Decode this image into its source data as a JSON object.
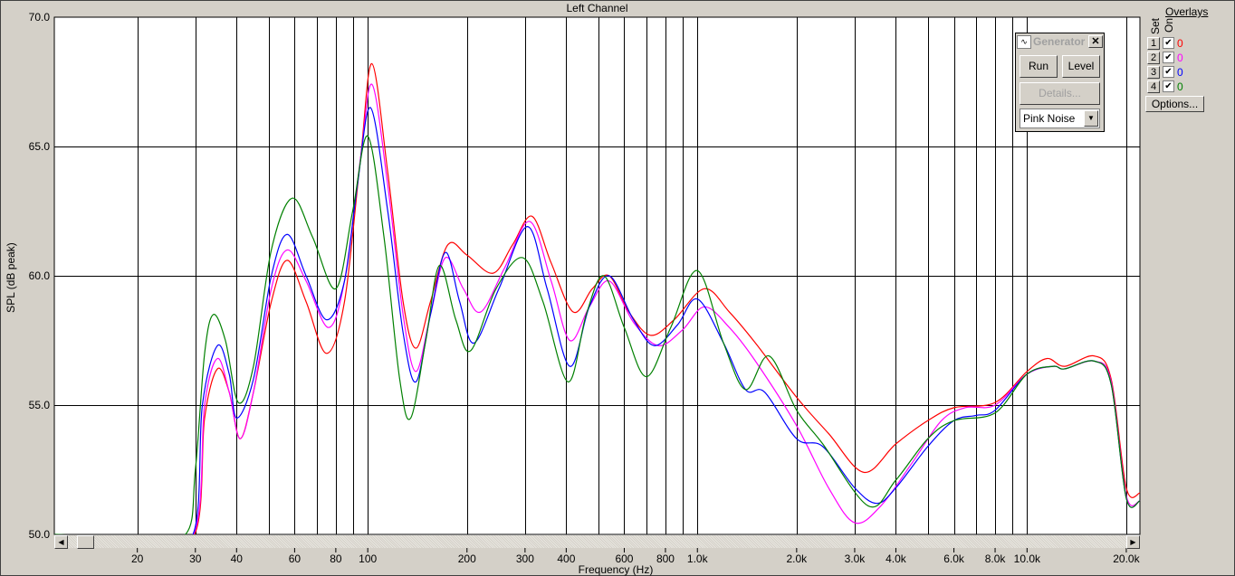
{
  "window": {
    "title": "Left Channel"
  },
  "generator": {
    "title": "Generator",
    "run": "Run",
    "level": "Level",
    "details": "Details...",
    "signal": "Pink Noise"
  },
  "overlays": {
    "title": "Overlays",
    "set_label": "Set",
    "on_label": "On",
    "options": "Options...",
    "items": [
      {
        "set": "1",
        "on": true,
        "value": "0",
        "color": "#ff0000"
      },
      {
        "set": "2",
        "on": true,
        "value": "0",
        "color": "#ff00ff"
      },
      {
        "set": "3",
        "on": true,
        "value": "0",
        "color": "#0000ff"
      },
      {
        "set": "4",
        "on": true,
        "value": "0",
        "color": "#008000"
      }
    ]
  },
  "chart_data": {
    "type": "line",
    "title": "Left Channel",
    "xlabel": "Frequency (Hz)",
    "ylabel": "SPL (dB peak)",
    "xscale": "log",
    "xlim": [
      11.2,
      22000
    ],
    "ylim": [
      50,
      70
    ],
    "grid": true,
    "yticks": [
      "70.0",
      "65.0",
      "60.0",
      "55.0",
      "50.0"
    ],
    "xticks": [
      {
        "v": 20,
        "l": "20"
      },
      {
        "v": 30,
        "l": "30"
      },
      {
        "v": 40,
        "l": "40"
      },
      {
        "v": 60,
        "l": "60"
      },
      {
        "v": 80,
        "l": "80"
      },
      {
        "v": 100,
        "l": "100"
      },
      {
        "v": 200,
        "l": "200"
      },
      {
        "v": 300,
        "l": "300"
      },
      {
        "v": 400,
        "l": "400"
      },
      {
        "v": 600,
        "l": "600"
      },
      {
        "v": 800,
        "l": "800"
      },
      {
        "v": 1000,
        "l": "1.0k"
      },
      {
        "v": 2000,
        "l": "2.0k"
      },
      {
        "v": 3000,
        "l": "3.0k"
      },
      {
        "v": 4000,
        "l": "4.0k"
      },
      {
        "v": 6000,
        "l": "6.0k"
      },
      {
        "v": 8000,
        "l": "8.0k"
      },
      {
        "v": 10000,
        "l": "10.0k"
      },
      {
        "v": 20000,
        "l": "20.0k"
      }
    ],
    "series": [
      {
        "color": "#ff0000",
        "points": [
          [
            11.2,
            50
          ],
          [
            29.8,
            50
          ],
          [
            32,
            54.5
          ],
          [
            35,
            56.4
          ],
          [
            38,
            55.5
          ],
          [
            41,
            53.7
          ],
          [
            45,
            55.5
          ],
          [
            51,
            59
          ],
          [
            57,
            60.6
          ],
          [
            65,
            59
          ],
          [
            75,
            57
          ],
          [
            85,
            59
          ],
          [
            95,
            64.5
          ],
          [
            103,
            68.2
          ],
          [
            115,
            64
          ],
          [
            128,
            59
          ],
          [
            140,
            57.2
          ],
          [
            155,
            59
          ],
          [
            175,
            61.2
          ],
          [
            200,
            60.8
          ],
          [
            240,
            60.1
          ],
          [
            275,
            61.2
          ],
          [
            315,
            62.3
          ],
          [
            360,
            60.5
          ],
          [
            420,
            58.6
          ],
          [
            480,
            59.5
          ],
          [
            540,
            60
          ],
          [
            620,
            58.6
          ],
          [
            720,
            57.7
          ],
          [
            850,
            58.3
          ],
          [
            1050,
            59.5
          ],
          [
            1250,
            58.6
          ],
          [
            1500,
            57.4
          ],
          [
            2000,
            55.3
          ],
          [
            2500,
            53.9
          ],
          [
            3200,
            52.4
          ],
          [
            4000,
            53.5
          ],
          [
            5000,
            54.4
          ],
          [
            6000,
            54.9
          ],
          [
            8000,
            55.1
          ],
          [
            10000,
            56.3
          ],
          [
            11500,
            56.8
          ],
          [
            13000,
            56.5
          ],
          [
            16000,
            56.9
          ],
          [
            18000,
            56
          ],
          [
            20000,
            51.8
          ],
          [
            22000,
            51.6
          ]
        ]
      },
      {
        "color": "#ff00ff",
        "points": [
          [
            11.2,
            50
          ],
          [
            29.6,
            50
          ],
          [
            32,
            55
          ],
          [
            35,
            56.8
          ],
          [
            38,
            55.5
          ],
          [
            41,
            53.7
          ],
          [
            45,
            55.5
          ],
          [
            51,
            59.5
          ],
          [
            57,
            61
          ],
          [
            65,
            59.8
          ],
          [
            76,
            58
          ],
          [
            85,
            59.8
          ],
          [
            95,
            64.5
          ],
          [
            103,
            67.4
          ],
          [
            115,
            63.5
          ],
          [
            128,
            58.5
          ],
          [
            140,
            56.3
          ],
          [
            155,
            58.5
          ],
          [
            172,
            60.7
          ],
          [
            195,
            59.5
          ],
          [
            220,
            58.6
          ],
          [
            260,
            60.3
          ],
          [
            310,
            62.1
          ],
          [
            360,
            59.8
          ],
          [
            410,
            57.5
          ],
          [
            470,
            58.8
          ],
          [
            540,
            59.8
          ],
          [
            640,
            58.2
          ],
          [
            760,
            57.3
          ],
          [
            900,
            57.9
          ],
          [
            1050,
            58.8
          ],
          [
            1250,
            58
          ],
          [
            1500,
            56.7
          ],
          [
            2000,
            54.2
          ],
          [
            2500,
            51.8
          ],
          [
            3000,
            50.45
          ],
          [
            3600,
            51.1
          ],
          [
            4500,
            52.8
          ],
          [
            5500,
            54.4
          ],
          [
            6500,
            54.9
          ],
          [
            8000,
            55
          ],
          [
            10000,
            56.2
          ],
          [
            12000,
            56.5
          ],
          [
            13000,
            56.4
          ],
          [
            16000,
            56.7
          ],
          [
            18000,
            55.9
          ],
          [
            20000,
            51.5
          ],
          [
            22000,
            51.3
          ]
        ]
      },
      {
        "color": "#0000ff",
        "points": [
          [
            11.2,
            50
          ],
          [
            29.5,
            50
          ],
          [
            31.5,
            55
          ],
          [
            35,
            57.3
          ],
          [
            38,
            56.2
          ],
          [
            40,
            54.5
          ],
          [
            45,
            56
          ],
          [
            51,
            60
          ],
          [
            57,
            61.6
          ],
          [
            65,
            60
          ],
          [
            75,
            58.3
          ],
          [
            85,
            59.8
          ],
          [
            93,
            63.5
          ],
          [
            102,
            66.5
          ],
          [
            115,
            62.5
          ],
          [
            128,
            57.8
          ],
          [
            140,
            55.9
          ],
          [
            155,
            58.5
          ],
          [
            172,
            60.9
          ],
          [
            190,
            59
          ],
          [
            210,
            57.4
          ],
          [
            250,
            59.5
          ],
          [
            305,
            61.9
          ],
          [
            350,
            59.5
          ],
          [
            410,
            56.5
          ],
          [
            470,
            58.8
          ],
          [
            540,
            60
          ],
          [
            640,
            58.3
          ],
          [
            740,
            57.3
          ],
          [
            870,
            58.1
          ],
          [
            1000,
            59.1
          ],
          [
            1200,
            57.4
          ],
          [
            1400,
            55.6
          ],
          [
            1600,
            55.5
          ],
          [
            2000,
            53.7
          ],
          [
            2400,
            53.4
          ],
          [
            3000,
            51.8
          ],
          [
            3500,
            51.2
          ],
          [
            4000,
            51.8
          ],
          [
            5000,
            53.4
          ],
          [
            6000,
            54.4
          ],
          [
            7000,
            54.6
          ],
          [
            8000,
            54.8
          ],
          [
            10000,
            56.2
          ],
          [
            12000,
            56.5
          ],
          [
            13000,
            56.4
          ],
          [
            16000,
            56.7
          ],
          [
            18000,
            55.8
          ],
          [
            20000,
            51.4
          ],
          [
            22000,
            51.3
          ]
        ]
      },
      {
        "color": "#008000",
        "points": [
          [
            11.2,
            50
          ],
          [
            28,
            50
          ],
          [
            30,
            52.5
          ],
          [
            32,
            57
          ],
          [
            34,
            58.5
          ],
          [
            37,
            57.5
          ],
          [
            40.5,
            55.1
          ],
          [
            45,
            56.5
          ],
          [
            51,
            61
          ],
          [
            59,
            63
          ],
          [
            68,
            61.5
          ],
          [
            80,
            59.5
          ],
          [
            90,
            62.5
          ],
          [
            100,
            65.4
          ],
          [
            112,
            61.5
          ],
          [
            125,
            56
          ],
          [
            135,
            54.5
          ],
          [
            150,
            57.5
          ],
          [
            165,
            60.4
          ],
          [
            185,
            58.3
          ],
          [
            205,
            57.1
          ],
          [
            245,
            59.5
          ],
          [
            295,
            60.7
          ],
          [
            340,
            59
          ],
          [
            405,
            55.9
          ],
          [
            460,
            58.5
          ],
          [
            520,
            60
          ],
          [
            600,
            58
          ],
          [
            700,
            56.1
          ],
          [
            830,
            58
          ],
          [
            1000,
            60.2
          ],
          [
            1200,
            57.4
          ],
          [
            1400,
            55.6
          ],
          [
            1650,
            56.9
          ],
          [
            2000,
            54.8
          ],
          [
            2400,
            53.5
          ],
          [
            3300,
            51.1
          ],
          [
            4000,
            52.1
          ],
          [
            5000,
            53.7
          ],
          [
            6000,
            54.4
          ],
          [
            8000,
            54.7
          ],
          [
            10000,
            56.2
          ],
          [
            12000,
            56.5
          ],
          [
            13000,
            56.4
          ],
          [
            16000,
            56.7
          ],
          [
            18000,
            55.8
          ],
          [
            20000,
            51.4
          ],
          [
            22000,
            51.3
          ]
        ]
      }
    ]
  }
}
